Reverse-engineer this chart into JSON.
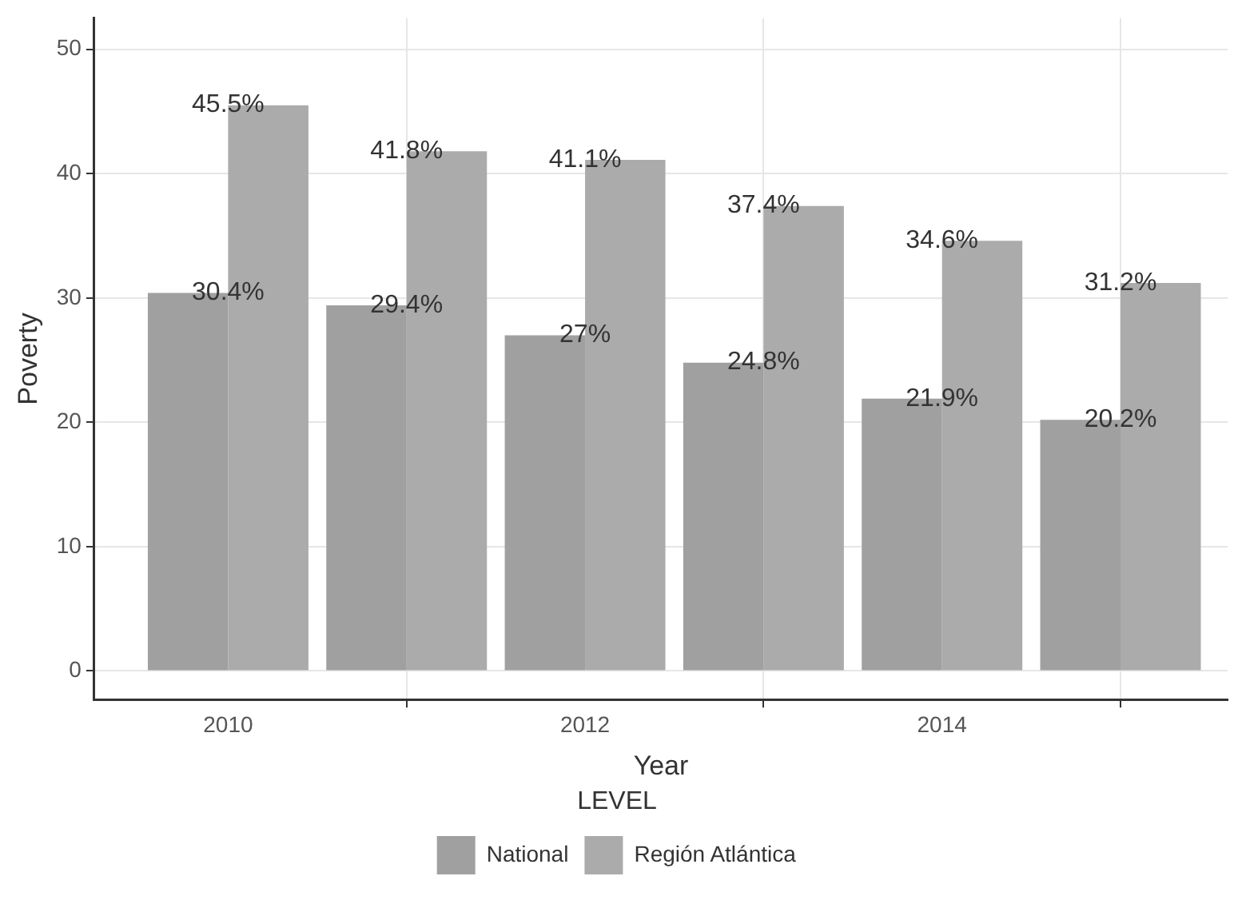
{
  "chart_data": {
    "type": "bar",
    "xlabel": "Year",
    "ylabel": "Poverty",
    "legend_title": "LEVEL",
    "x": [
      2010,
      2011,
      2012,
      2013,
      2014,
      2015
    ],
    "series": [
      {
        "name": "National",
        "color": "#a0a0a0",
        "values": [
          30.4,
          29.4,
          27,
          24.8,
          21.9,
          20.2
        ],
        "value_labels": [
          "30.4%",
          "29.4%",
          "27%",
          "24.8%",
          "21.9%",
          "20.2%"
        ]
      },
      {
        "name": "Región Atlántica",
        "color": "#ababab",
        "values": [
          45.5,
          41.8,
          41.1,
          37.4,
          34.6,
          31.2
        ],
        "value_labels": [
          "45.5%",
          "41.8%",
          "41.1%",
          "37.4%",
          "34.6%",
          "31.2%"
        ]
      }
    ],
    "xlim": [
      2009.25,
      2015.6
    ],
    "xticks": [
      2010,
      2012,
      2014
    ],
    "ylim": [
      -2.3,
      52.5
    ],
    "yticks": [
      0,
      10,
      20,
      30,
      40,
      50
    ],
    "grid": true,
    "legend": "bottom"
  }
}
